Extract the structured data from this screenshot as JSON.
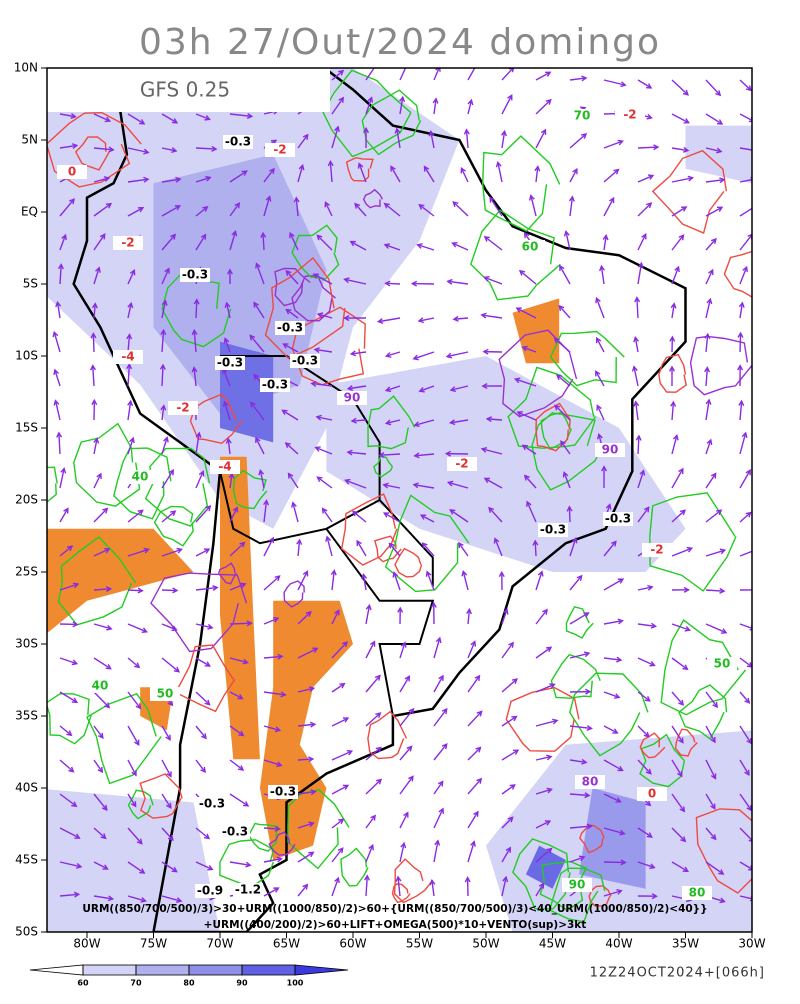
{
  "title": "03h 27/Out/2024 domingo",
  "model": "GFS 0.25",
  "lat_labels": [
    "10N",
    "5N",
    "EQ",
    "5S",
    "10S",
    "15S",
    "20S",
    "25S",
    "30S",
    "35S",
    "40S",
    "45S",
    "50S"
  ],
  "lon_labels": [
    "80W",
    "75W",
    "70W",
    "65W",
    "60W",
    "55W",
    "50W",
    "45W",
    "40W",
    "35W",
    "30W"
  ],
  "contour_labels": [
    "-0.3",
    "-2",
    "-0.3",
    "-0.3",
    "-0.3",
    "-0.3",
    "-0.3",
    "-0.3",
    "-0.3",
    "-0.3",
    "-0.3",
    "-0.3",
    "-0.9",
    "-1.2",
    "-2",
    "-4",
    "-2",
    "-4",
    "-2",
    "-2",
    "0",
    "0",
    "-2",
    "90",
    "90",
    "80",
    "90",
    "70",
    "60",
    "50",
    "40",
    "40",
    "50",
    "80"
  ],
  "formula": [
    "URM((850/700/500)/3)>30+URM((1000/850)/2)>60+{URM((850/700/500)/3)<40_URM((1000/850)/2)<40}}",
    "+URM((400/200)/2)>60+LIFT+OMEGA(500)*10+VENTO(sup)>3kt"
  ],
  "colorbar": {
    "ticks": [
      60,
      70,
      80,
      90,
      100
    ],
    "colors": [
      "#ffffff",
      "#d4d4f6",
      "#b0b0ee",
      "#8e8ee8",
      "#6060e4",
      "#3a3ae0"
    ]
  },
  "footer": "12Z24OCT2024+[066h]"
}
